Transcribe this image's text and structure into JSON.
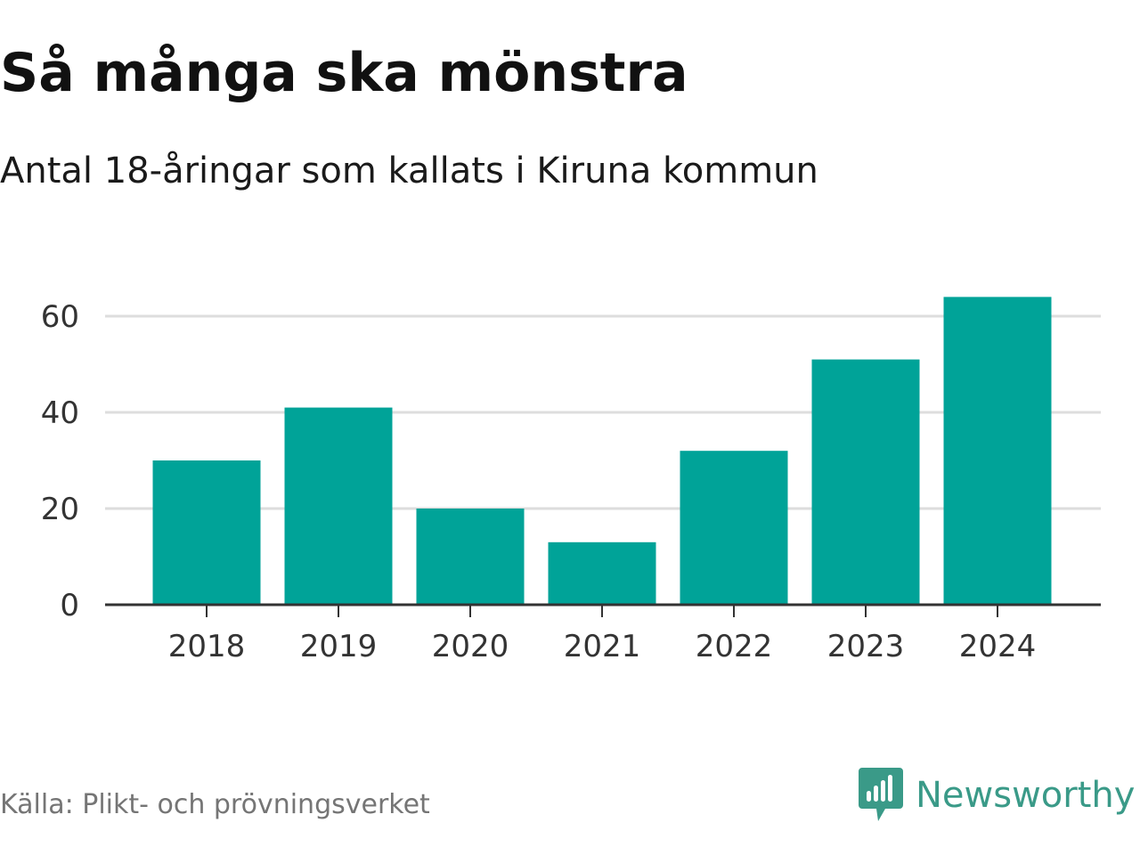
{
  "header": {
    "title": "Så många ska mönstra",
    "subtitle": "Antal 18-åringar som kallats i Kiruna kommun"
  },
  "chart_data": {
    "type": "bar",
    "title": "Så många ska mönstra",
    "subtitle": "Antal 18-åringar som kallats i Kiruna kommun",
    "categories": [
      "2018",
      "2019",
      "2020",
      "2021",
      "2022",
      "2023",
      "2024"
    ],
    "values": [
      30,
      41,
      20,
      13,
      32,
      51,
      64
    ],
    "xlabel": "",
    "ylabel": "",
    "ylim": [
      0,
      65
    ],
    "yticks": [
      0,
      20,
      40,
      60
    ],
    "grid": true,
    "legend": "none",
    "bar_color": "#00a398",
    "grid_color": "#dddddd",
    "axis_color": "#333333"
  },
  "footer": {
    "source": "Källa: Plikt- och prövningsverket",
    "brand": "Newsworthy",
    "brand_color": "#3a9a88",
    "brand_icon": "newsworthy-logo-icon"
  }
}
